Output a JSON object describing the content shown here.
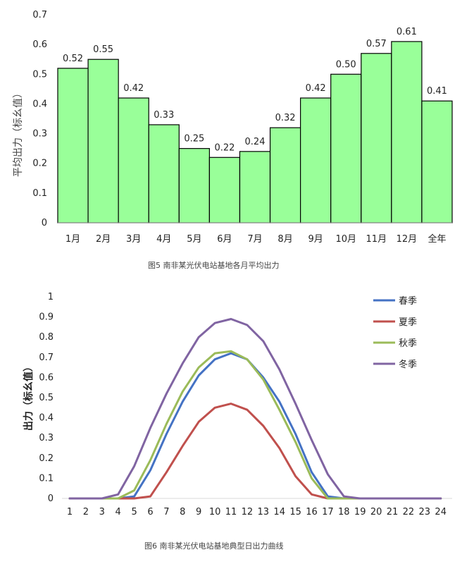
{
  "chart_data": [
    {
      "type": "bar",
      "title": "",
      "caption": "图5   南非某光伏电站基地各月平均出力",
      "xlabel": "",
      "ylabel": "平均出力（标幺值）",
      "categories": [
        "1月",
        "2月",
        "3月",
        "4月",
        "5月",
        "6月",
        "7月",
        "8月",
        "9月",
        "10月",
        "11月",
        "12月",
        "全年"
      ],
      "values": [
        0.52,
        0.55,
        0.42,
        0.33,
        0.25,
        0.22,
        0.24,
        0.32,
        0.42,
        0.5,
        0.57,
        0.61,
        0.41
      ],
      "data_labels": [
        "0.52",
        "0.55",
        "0.42",
        "0.33",
        "0.25",
        "0.22",
        "0.24",
        "0.32",
        "0.42",
        "0.50",
        "0.57",
        "0.61",
        "0.41"
      ],
      "yticks": [
        "0",
        "0.1",
        "0.2",
        "0.3",
        "0.4",
        "0.5",
        "0.6",
        "0.7"
      ],
      "ylim": [
        0,
        0.7
      ],
      "bar_color": "#99FF99",
      "grid": false
    },
    {
      "type": "line",
      "title": "",
      "caption": "图6   南非某光伏电站基地典型日出力曲线",
      "xlabel": "",
      "ylabel": "出力（标幺值）",
      "x": [
        1,
        2,
        3,
        4,
        5,
        6,
        7,
        8,
        9,
        10,
        11,
        12,
        13,
        14,
        15,
        16,
        17,
        18,
        19,
        20,
        21,
        22,
        23,
        24
      ],
      "xticks": [
        "1",
        "2",
        "3",
        "4",
        "5",
        "6",
        "7",
        "8",
        "9",
        "10",
        "11",
        "12",
        "13",
        "14",
        "15",
        "16",
        "17",
        "18",
        "19",
        "20",
        "21",
        "22",
        "23",
        "24"
      ],
      "yticks": [
        "0",
        "0.1",
        "0.2",
        "0.3",
        "0.4",
        "0.5",
        "0.6",
        "0.7",
        "0.8",
        "0.9",
        "1"
      ],
      "ylim": [
        0,
        1
      ],
      "legend_position": "top-right",
      "grid": false,
      "series": [
        {
          "name": "春季",
          "color": "#4472C4",
          "values": [
            0,
            0,
            0,
            0,
            0.01,
            0.14,
            0.32,
            0.48,
            0.61,
            0.69,
            0.72,
            0.69,
            0.6,
            0.48,
            0.32,
            0.13,
            0.01,
            0,
            0,
            0,
            0,
            0,
            0,
            0
          ]
        },
        {
          "name": "夏季",
          "color": "#C0504D",
          "values": [
            0,
            0,
            0,
            0,
            0,
            0.01,
            0.13,
            0.26,
            0.38,
            0.45,
            0.47,
            0.44,
            0.36,
            0.25,
            0.11,
            0.02,
            0,
            0,
            0,
            0,
            0,
            0,
            0,
            0
          ]
        },
        {
          "name": "秋季",
          "color": "#9BBB59",
          "values": [
            0,
            0,
            0,
            0,
            0.04,
            0.19,
            0.37,
            0.53,
            0.65,
            0.72,
            0.73,
            0.69,
            0.59,
            0.44,
            0.28,
            0.1,
            0,
            0,
            0,
            0,
            0,
            0,
            0,
            0
          ]
        },
        {
          "name": "冬季",
          "color": "#8064A2",
          "values": [
            0,
            0,
            0,
            0.02,
            0.16,
            0.35,
            0.52,
            0.67,
            0.8,
            0.87,
            0.89,
            0.86,
            0.78,
            0.64,
            0.47,
            0.29,
            0.12,
            0.01,
            0,
            0,
            0,
            0,
            0,
            0
          ]
        }
      ]
    }
  ]
}
